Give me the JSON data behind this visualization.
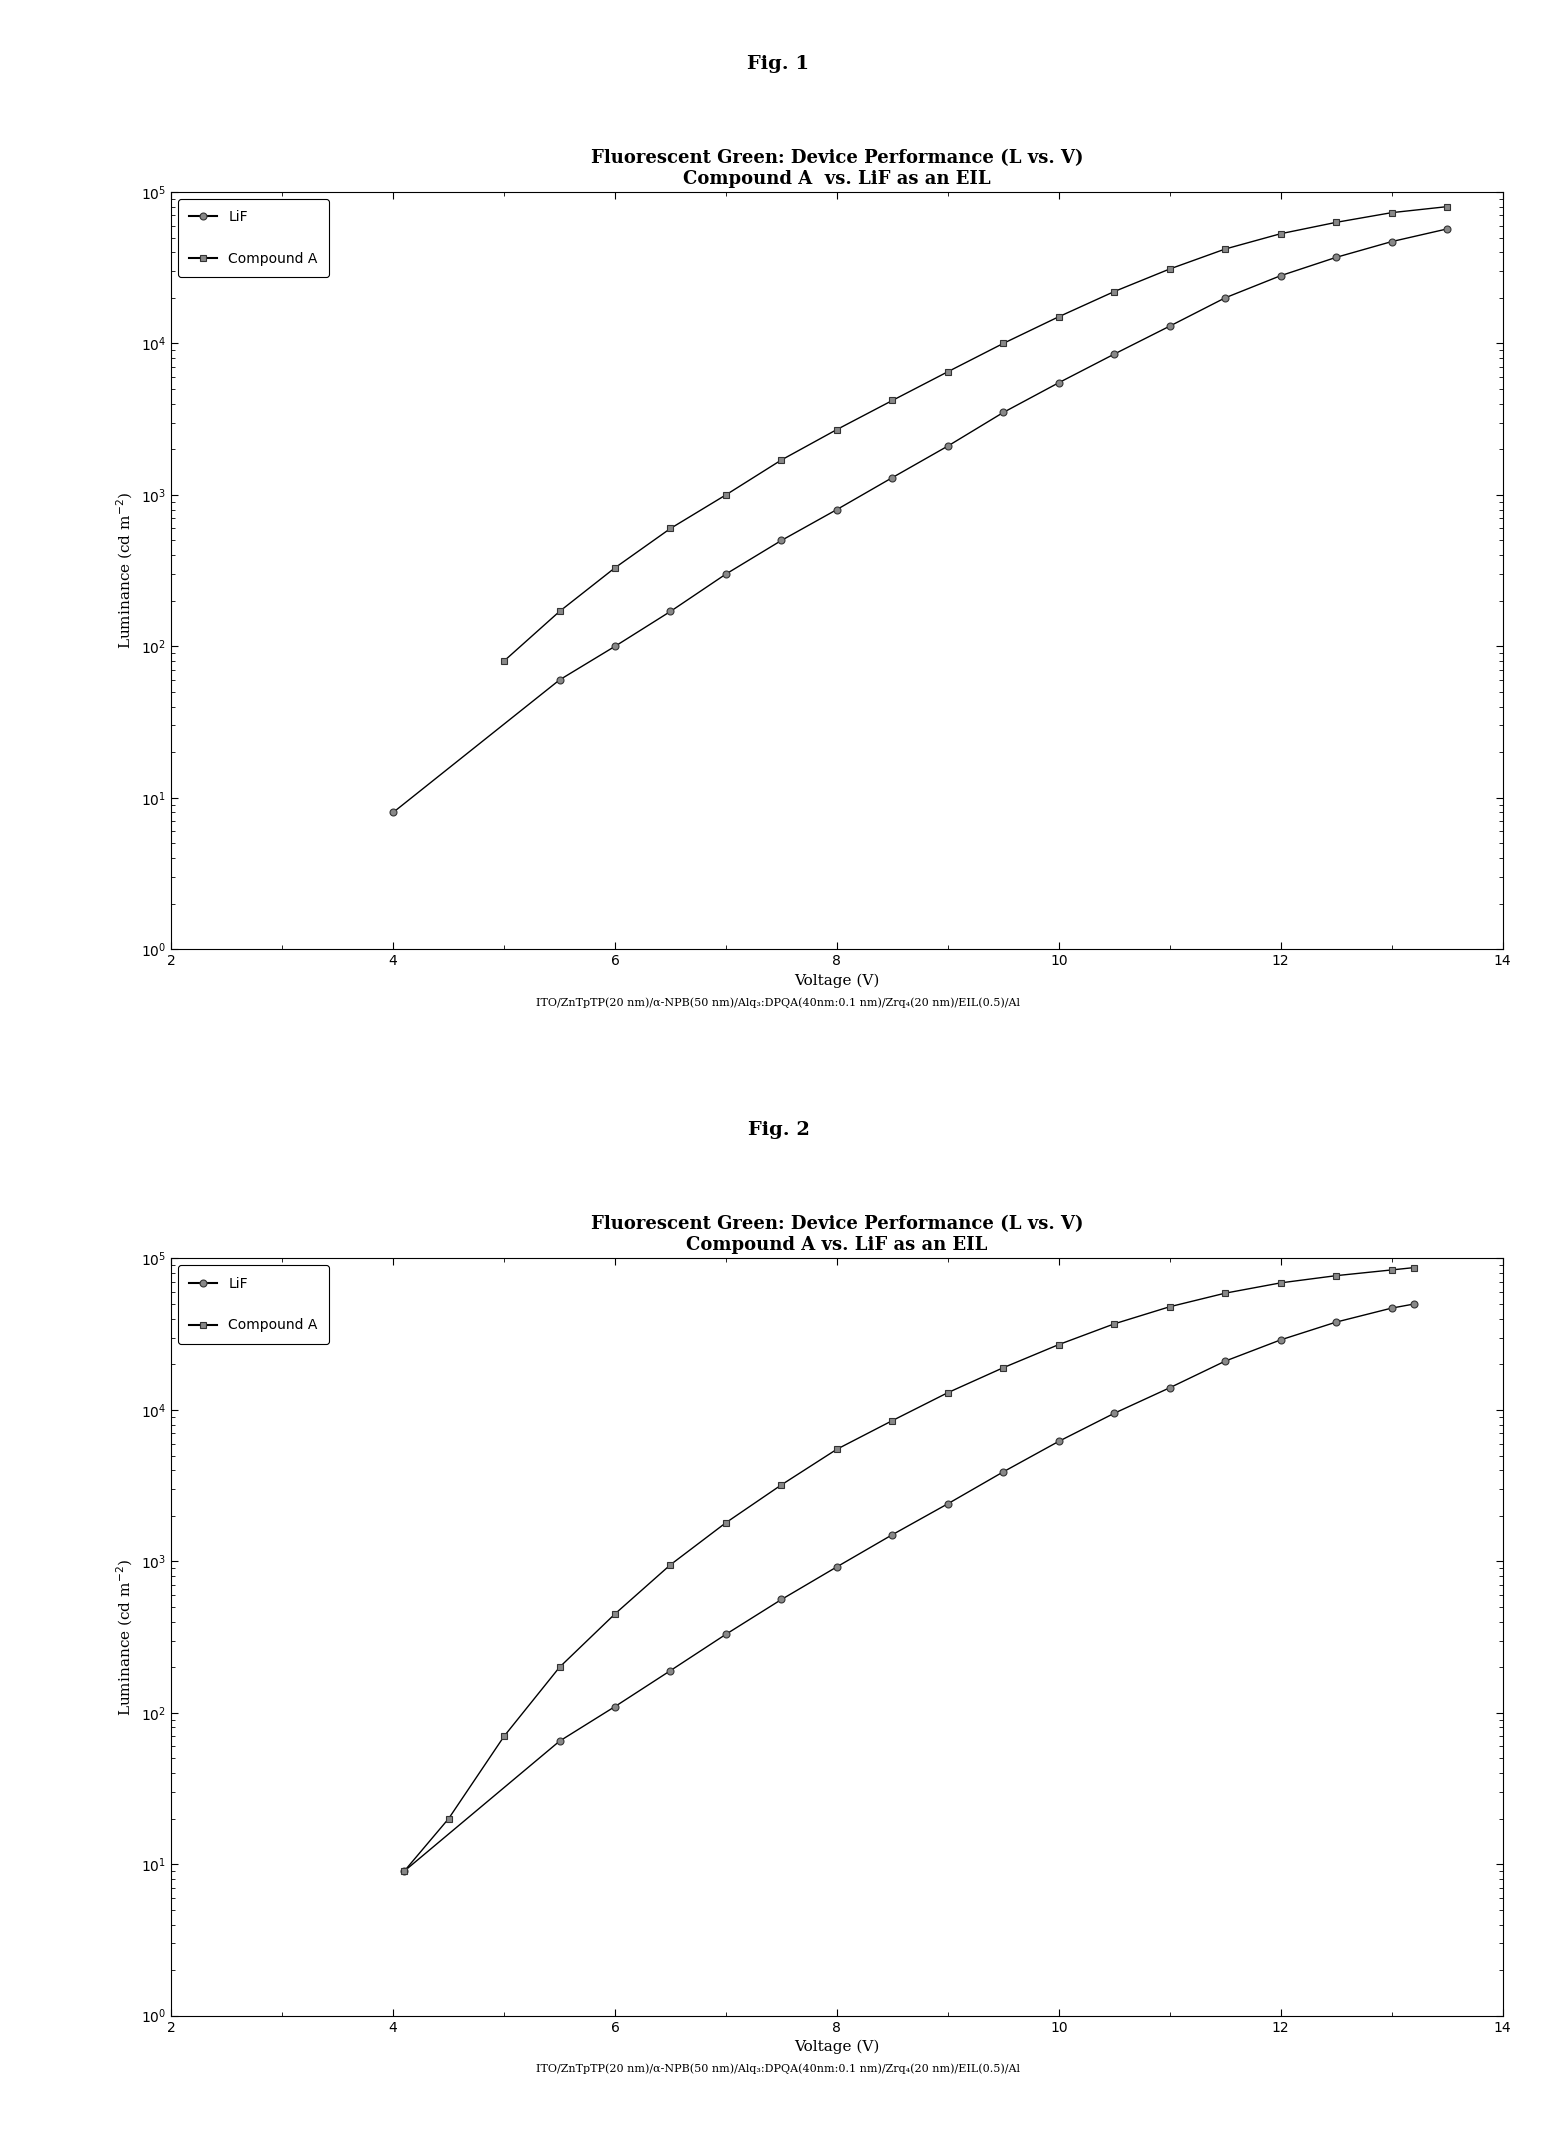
{
  "fig1_title": "Fig. 1",
  "fig2_title": "Fig. 2",
  "plot_title": "Fluorescent Green: Device Performance (L vs. V)",
  "plot_subtitle1": "Compound A  vs. LiF as an EIL",
  "plot_subtitle2": "Compound A vs. LiF as an EIL",
  "xlabel": "Voltage (V)",
  "ylabel": "Luminance (cd m$^{-2}$)",
  "caption1": "ITO/ZnTpTP(20 nm)/α-NPB(50 nm)/Alq₃:DPQA(40nm:0.1 nm)/Zrq₄(20 nm)/EIL(0.5)/Al",
  "caption2": "ITO/ZnTpTP(20 nm)/α-NPB(50 nm)/Alq₃:DPQA(40nm:0.1 nm)/Zrq₄(20 nm)/EIL(0.5)/Al",
  "xlim": [
    2,
    14
  ],
  "xticks": [
    2,
    4,
    6,
    8,
    10,
    12,
    14
  ],
  "ylim": [
    1,
    100000
  ],
  "fig1_LiF_V": [
    4.0,
    5.5,
    6.0,
    6.5,
    7.0,
    7.5,
    8.0,
    8.5,
    9.0,
    9.5,
    10.0,
    10.5,
    11.0,
    11.5,
    12.0,
    12.5,
    13.0,
    13.5
  ],
  "fig1_LiF_L": [
    8.0,
    60.0,
    100.0,
    170.0,
    300.0,
    500.0,
    800.0,
    1300.0,
    2100.0,
    3500.0,
    5500.0,
    8500.0,
    13000.0,
    20000.0,
    28000.0,
    37000.0,
    47000.0,
    57000.0
  ],
  "fig1_CompA_V": [
    5.0,
    5.5,
    6.0,
    6.5,
    7.0,
    7.5,
    8.0,
    8.5,
    9.0,
    9.5,
    10.0,
    10.5,
    11.0,
    11.5,
    12.0,
    12.5,
    13.0,
    13.5
  ],
  "fig1_CompA_L": [
    80.0,
    170.0,
    330.0,
    600.0,
    1000.0,
    1700.0,
    2700.0,
    4200.0,
    6500.0,
    10000.0,
    15000.0,
    22000.0,
    31000.0,
    42000.0,
    53000.0,
    63000.0,
    73000.0,
    80000.0
  ],
  "fig2_LiF_V": [
    4.1,
    5.5,
    6.0,
    6.5,
    7.0,
    7.5,
    8.0,
    8.5,
    9.0,
    9.5,
    10.0,
    10.5,
    11.0,
    11.5,
    12.0,
    12.5,
    13.0,
    13.2
  ],
  "fig2_LiF_L": [
    9.0,
    65.0,
    110.0,
    190.0,
    330.0,
    560.0,
    920.0,
    1500.0,
    2400.0,
    3900.0,
    6200.0,
    9500.0,
    14000.0,
    21000.0,
    29000.0,
    38000.0,
    47000.0,
    50000.0
  ],
  "fig2_CompA_V": [
    4.1,
    4.5,
    5.0,
    5.5,
    6.0,
    6.5,
    7.0,
    7.5,
    8.0,
    8.5,
    9.0,
    9.5,
    10.0,
    10.5,
    11.0,
    11.5,
    12.0,
    12.5,
    13.0,
    13.2
  ],
  "fig2_CompA_L": [
    9.0,
    20.0,
    70.0,
    200.0,
    450.0,
    950.0,
    1800.0,
    3200.0,
    5500.0,
    8500.0,
    13000.0,
    19000.0,
    27000.0,
    37000.0,
    48000.0,
    59000.0,
    69000.0,
    77000.0,
    84000.0,
    87000.0
  ],
  "lif_color": "#555555",
  "compa_color": "#555555",
  "marker_size": 5,
  "line_color": "#000000",
  "background_color": "#ffffff",
  "legend_fontsize": 10,
  "title_fontsize": 13,
  "subtitle_fontsize": 11,
  "axis_label_fontsize": 11,
  "tick_label_fontsize": 10,
  "figlabel_fontsize": 14,
  "caption_fontsize": 8
}
